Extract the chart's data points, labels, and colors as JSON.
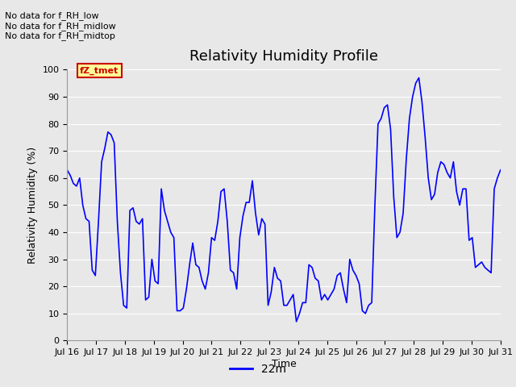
{
  "title": "Relativity Humidity Profile",
  "ylabel": "Relativity Humidity (%)",
  "xlabel": "Time",
  "line_color": "#0000FF",
  "line_width": 1.2,
  "legend_label": "22m",
  "ylim": [
    0,
    100
  ],
  "yticks": [
    0,
    10,
    20,
    30,
    40,
    50,
    60,
    70,
    80,
    90,
    100
  ],
  "xtick_labels": [
    "Jul 16",
    "Jul 17",
    "Jul 18",
    "Jul 19",
    "Jul 20",
    "Jul 21",
    "Jul 22",
    "Jul 23",
    "Jul 24",
    "Jul 25",
    "Jul 26",
    "Jul 27",
    "Jul 28",
    "Jul 29",
    "Jul 30",
    "Jul 31"
  ],
  "annotations": [
    "No data for f_RH_low",
    "No data for f_RH_midlow",
    "No data for f_RH_midtop"
  ],
  "annotation_box_color": "#FFFF99",
  "annotation_box_edge": "#CC0000",
  "annotation_text_color": "#CC0000",
  "background_color": "#E8E8E8",
  "fig_color": "#E8E8E8",
  "grid_color": "#FFFFFF",
  "title_fontsize": 13,
  "label_fontsize": 9,
  "tick_fontsize": 8,
  "y_values": [
    63,
    61,
    58,
    57,
    60,
    50,
    45,
    44,
    26,
    24,
    44,
    66,
    71,
    77,
    76,
    73,
    44,
    25,
    13,
    12,
    48,
    49,
    44,
    43,
    45,
    15,
    16,
    30,
    22,
    21,
    56,
    48,
    44,
    40,
    38,
    11,
    11,
    12,
    19,
    28,
    36,
    28,
    27,
    22,
    19,
    25,
    38,
    37,
    44,
    55,
    56,
    44,
    26,
    25,
    19,
    38,
    46,
    51,
    51,
    59,
    47,
    39,
    45,
    43,
    13,
    18,
    27,
    23,
    22,
    13,
    13,
    15,
    17,
    7,
    10,
    14,
    14,
    28,
    27,
    23,
    22,
    15,
    17,
    15,
    17,
    19,
    24,
    25,
    19,
    14,
    30,
    26,
    24,
    21,
    11,
    10,
    13,
    14,
    50,
    80,
    82,
    86,
    87,
    78,
    53,
    38,
    40,
    47,
    67,
    82,
    90,
    95,
    97,
    88,
    75,
    60,
    52,
    54,
    62,
    66,
    65,
    62,
    60,
    66,
    55,
    50,
    56,
    56,
    37,
    38,
    27,
    28,
    29,
    27,
    26,
    25,
    56,
    60,
    63
  ]
}
